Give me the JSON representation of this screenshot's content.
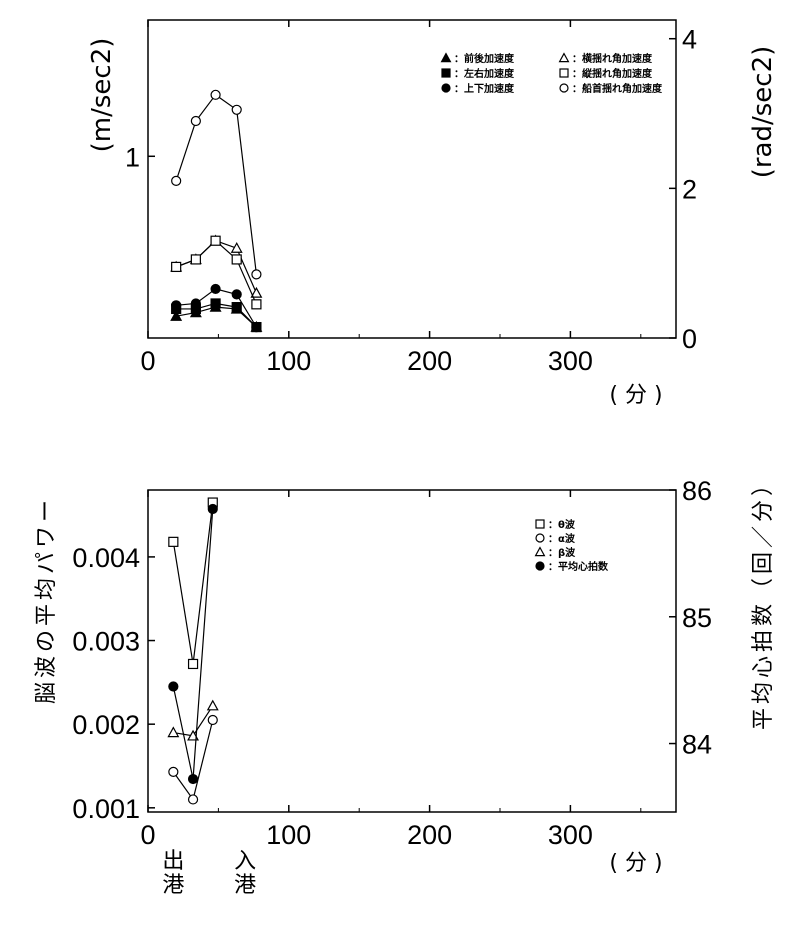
{
  "chart_data": [
    {
      "type": "line",
      "x_unit": "( 分 )",
      "xlim": [
        0,
        375
      ],
      "x_ticks": [
        0,
        100,
        200,
        300
      ],
      "ylabel_left": "(m/sec",
      "ylabel_left_sup": "2",
      "ylabel_left_close": ")",
      "ylim_left": [
        0,
        1.75
      ],
      "y_ticks_left": [
        1
      ],
      "ylabel_right": "(rad/sec",
      "ylabel_right_sup": "2",
      "ylabel_right_close": ")",
      "ylim_right": [
        0,
        4.25
      ],
      "y_ticks_right": [
        0,
        2,
        4
      ],
      "legend_position": "top-right",
      "series": [
        {
          "name": "前後加速度",
          "marker": "triangle-filled",
          "axis": "left",
          "x": [
            20,
            34,
            48,
            63,
            77
          ],
          "y": [
            0.12,
            0.14,
            0.17,
            0.16,
            0.06
          ]
        },
        {
          "name": "左右加速度",
          "marker": "square-filled",
          "axis": "left",
          "x": [
            20,
            34,
            48,
            63,
            77
          ],
          "y": [
            0.16,
            0.16,
            0.19,
            0.17,
            0.06
          ]
        },
        {
          "name": "上下加速度",
          "marker": "circle-filled",
          "axis": "left",
          "x": [
            20,
            34,
            48,
            63,
            77
          ],
          "y": [
            0.18,
            0.19,
            0.27,
            0.24,
            0.06
          ]
        },
        {
          "name": "横揺れ角加速度",
          "marker": "triangle-open",
          "axis": "right",
          "x": [
            20,
            34,
            48,
            63,
            77
          ],
          "y": [
            0.95,
            1.05,
            1.3,
            1.2,
            0.6
          ]
        },
        {
          "name": "縦揺れ角加速度",
          "marker": "square-open",
          "axis": "right",
          "x": [
            20,
            34,
            48,
            63,
            77
          ],
          "y": [
            0.95,
            1.05,
            1.3,
            1.05,
            0.45
          ]
        },
        {
          "name": "船首揺れ角加速度",
          "marker": "circle-open",
          "axis": "right",
          "x": [
            20,
            34,
            48,
            63,
            77
          ],
          "y": [
            2.1,
            2.9,
            3.25,
            3.05,
            0.85
          ]
        }
      ]
    },
    {
      "type": "line",
      "x_unit": "( 分 )",
      "xlim": [
        0,
        375
      ],
      "x_ticks": [
        0,
        100,
        200,
        300
      ],
      "ylabel_left": "脳波の平均パワー",
      "ylim_left": [
        0.00095,
        0.0048
      ],
      "y_ticks_left": [
        0.001,
        0.002,
        0.003,
        0.004
      ],
      "y_ticks_left_labels": [
        "0.001",
        "0.002",
        "0.003",
        "0.004"
      ],
      "ylabel_right": "平均心拍数（回／分）",
      "ylim_right": [
        83.46,
        86.0
      ],
      "y_ticks_right": [
        84,
        85,
        86
      ],
      "legend_position": "top-right",
      "x_annotations": [
        {
          "x": 18,
          "text": [
            "出",
            "港"
          ]
        },
        {
          "x": 69,
          "text": [
            "入",
            "港"
          ]
        }
      ],
      "series": [
        {
          "name": "θ波",
          "marker": "square-open",
          "axis": "left",
          "x": [
            18,
            32,
            46
          ],
          "y": [
            0.00418,
            0.00272,
            0.00465
          ]
        },
        {
          "name": "α波",
          "marker": "circle-open",
          "axis": "left",
          "x": [
            18,
            32,
            46
          ],
          "y": [
            0.00143,
            0.0011,
            0.00205
          ]
        },
        {
          "name": "β波",
          "marker": "triangle-open",
          "axis": "left",
          "x": [
            18,
            32,
            46
          ],
          "y": [
            0.0019,
            0.00186,
            0.00222
          ]
        },
        {
          "name": "平均心拍数",
          "marker": "circle-filled",
          "axis": "right",
          "x": [
            18,
            32,
            46
          ],
          "y": [
            84.45,
            83.72,
            85.85
          ]
        }
      ]
    }
  ]
}
